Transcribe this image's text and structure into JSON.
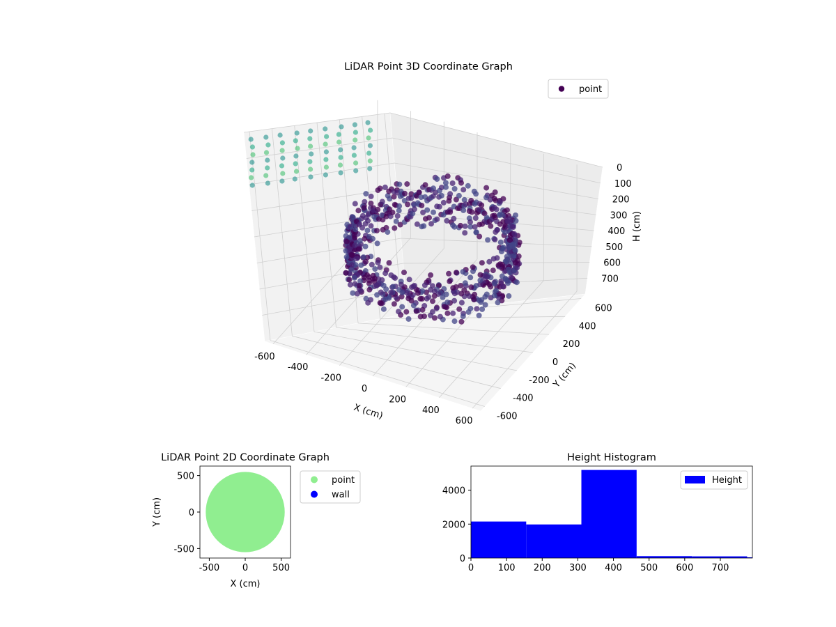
{
  "chart_data": [
    {
      "type": "scatter",
      "projection": "3d",
      "title": "LiDAR Point 3D Coordinate Graph",
      "xlabel": "X (cm)",
      "ylabel": "Y (cm)",
      "zlabel": "H (cm)",
      "x_ticks": [
        -600,
        -400,
        -200,
        0,
        200,
        400,
        600
      ],
      "y_ticks": [
        -600,
        -400,
        -200,
        0,
        200,
        400,
        600
      ],
      "z_ticks": [
        0,
        100,
        200,
        300,
        400,
        500,
        600,
        700
      ],
      "xlim": [
        -650,
        650
      ],
      "ylim": [
        -650,
        650
      ],
      "zlim": [
        0,
        800
      ],
      "z_inverted": true,
      "colormap": "viridis",
      "legend": {
        "placement": "top-right",
        "entries": [
          {
            "label": "point",
            "color": "#440154"
          }
        ]
      },
      "series": [
        {
          "name": "point",
          "shape": "ring of points, radius ~560 cm, around the origin",
          "radius": 560,
          "height_range": [
            300,
            800
          ],
          "grid_walls": true
        }
      ]
    },
    {
      "type": "scatter",
      "title": "LiDAR Point 2D Coordinate Graph",
      "xlabel": "X (cm)",
      "ylabel": "Y (cm)",
      "x_ticks": [
        -500,
        0,
        500
      ],
      "y_ticks": [
        -500,
        0,
        500
      ],
      "xlim": [
        -630,
        630
      ],
      "ylim": [
        -630,
        630
      ],
      "grid": false,
      "legend": {
        "placement": "outside-right",
        "entries": [
          {
            "label": "point",
            "color": "#90ee90"
          },
          {
            "label": "wall",
            "color": "#0000ff"
          }
        ]
      },
      "series": [
        {
          "name": "point",
          "color": "#90ee90",
          "shape": "filled disc, centre ~(0,0), radius ~550"
        },
        {
          "name": "wall",
          "color": "#0000ff",
          "points": []
        }
      ]
    },
    {
      "type": "bar",
      "subtype": "histogram",
      "title": "Height Histogram",
      "xlabel": "",
      "ylabel": "",
      "color": "#0000ff",
      "x_ticks": [
        0,
        100,
        200,
        300,
        400,
        500,
        600,
        700
      ],
      "y_ticks": [
        0,
        2000,
        4000
      ],
      "xlim": [
        0,
        790
      ],
      "ylim": [
        0,
        5420
      ],
      "legend": {
        "placement": "top-right",
        "entries": [
          {
            "label": "Height",
            "color": "#0000ff"
          }
        ]
      },
      "bins": [
        {
          "x0": 0,
          "x1": 155,
          "count": 2150
        },
        {
          "x0": 155,
          "x1": 310,
          "count": 1980
        },
        {
          "x0": 310,
          "x1": 465,
          "count": 5190
        },
        {
          "x0": 465,
          "x1": 620,
          "count": 110
        },
        {
          "x0": 620,
          "x1": 775,
          "count": 100
        },
        {
          "x0": 775,
          "x1": 790,
          "count": 40
        }
      ]
    }
  ]
}
